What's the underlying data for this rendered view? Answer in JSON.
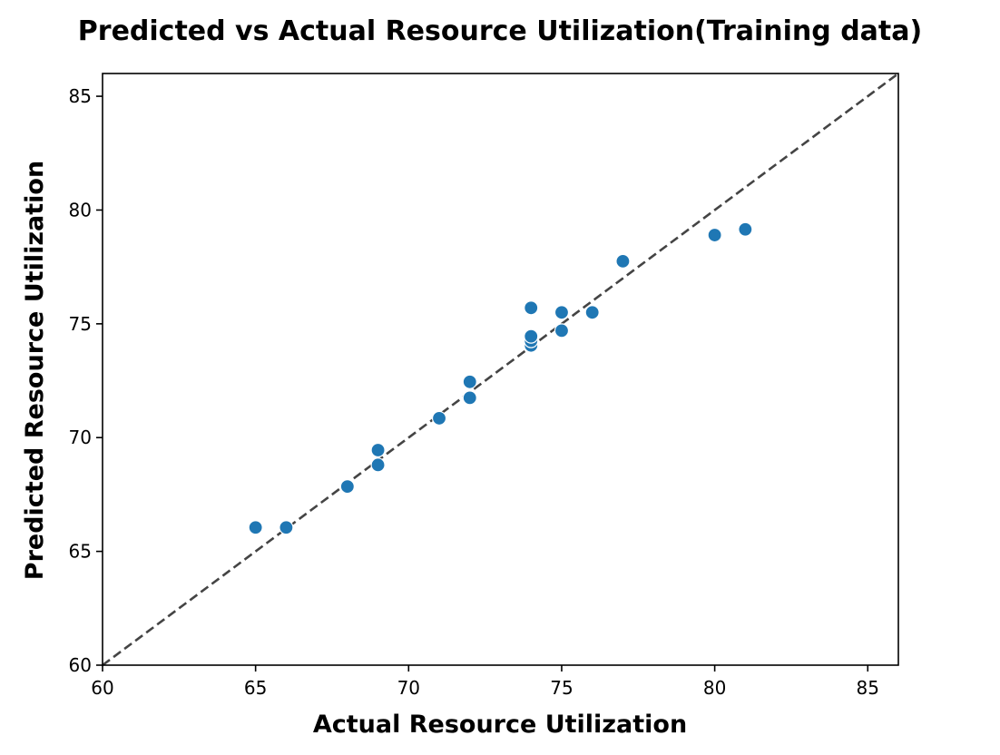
{
  "chart_data": {
    "type": "scatter",
    "title": "Predicted vs Actual Resource Utilization(Training data)",
    "xlabel": "Actual Resource Utilization",
    "ylabel": "Predicted Resource Utilization",
    "xlim": [
      60,
      86
    ],
    "ylim": [
      60,
      86
    ],
    "xticks": [
      "60",
      "65",
      "70",
      "75",
      "80",
      "85"
    ],
    "yticks": [
      "60",
      "65",
      "70",
      "75",
      "80",
      "85"
    ],
    "grid": false,
    "legend": "none",
    "series": [
      {
        "color": "#1f77b4",
        "points": [
          {
            "x": 65,
            "y": 66.05
          },
          {
            "x": 66,
            "y": 66.05
          },
          {
            "x": 68,
            "y": 67.85
          },
          {
            "x": 69,
            "y": 68.8
          },
          {
            "x": 69,
            "y": 69.45
          },
          {
            "x": 71,
            "y": 70.85
          },
          {
            "x": 72,
            "y": 71.75
          },
          {
            "x": 72,
            "y": 72.45
          },
          {
            "x": 74,
            "y": 74.05
          },
          {
            "x": 74,
            "y": 74.25
          },
          {
            "x": 74,
            "y": 74.45
          },
          {
            "x": 74,
            "y": 75.7
          },
          {
            "x": 75,
            "y": 74.7
          },
          {
            "x": 75,
            "y": 75.5
          },
          {
            "x": 76,
            "y": 75.5
          },
          {
            "x": 77,
            "y": 77.75
          },
          {
            "x": 80,
            "y": 78.9
          },
          {
            "x": 81,
            "y": 79.15
          }
        ]
      }
    ],
    "reference_line": {
      "from": [
        60,
        60
      ],
      "to": [
        86,
        86
      ],
      "style": "dashed",
      "color": "#444444"
    }
  }
}
